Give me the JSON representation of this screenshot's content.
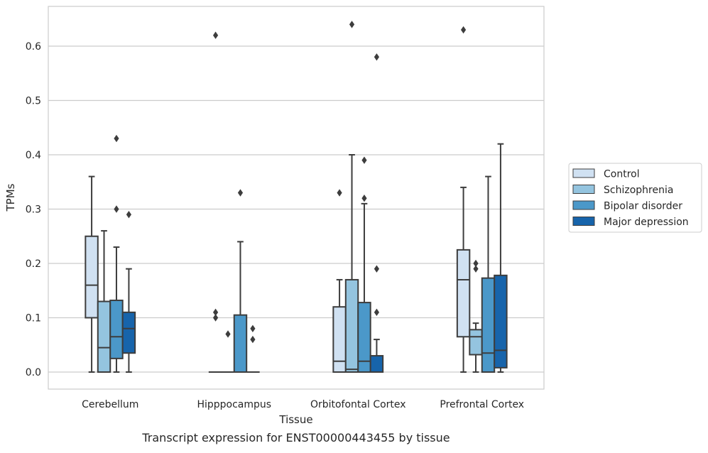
{
  "chart_data": {
    "type": "box",
    "title": "",
    "caption": "Transcript expression for ENST00000443455 by tissue",
    "xlabel": "Tissue",
    "ylabel": "TPMs",
    "ylim": [
      -0.03,
      0.675
    ],
    "yticks": [
      0.0,
      0.1,
      0.2,
      0.3,
      0.4,
      0.5,
      0.6
    ],
    "ytick_labels": [
      "0.0",
      "0.1",
      "0.2",
      "0.3",
      "0.4",
      "0.5",
      "0.6"
    ],
    "grid": "horizontal",
    "legend_position": "right",
    "categories": [
      "Cerebellum",
      "Hipppocampus",
      "Orbitofontal Cortex",
      "Prefrontal Cortex"
    ],
    "series": [
      {
        "name": "Control",
        "color": "#d0e1f2",
        "boxes": [
          {
            "whislo": 0.0,
            "q1": 0.1,
            "med": 0.16,
            "q3": 0.25,
            "whishi": 0.36,
            "fliers": []
          },
          {
            "whislo": 0.0,
            "q1": 0.0,
            "med": 0.0,
            "q3": 0.0,
            "whishi": 0.0,
            "fliers": [
              0.62,
              0.11,
              0.1
            ]
          },
          {
            "whislo": 0.0,
            "q1": 0.0,
            "med": 0.02,
            "q3": 0.12,
            "whishi": 0.17,
            "fliers": [
              0.33
            ]
          },
          {
            "whislo": 0.0,
            "q1": 0.065,
            "med": 0.17,
            "q3": 0.225,
            "whishi": 0.34,
            "fliers": [
              0.63
            ]
          }
        ]
      },
      {
        "name": "Schizophrenia",
        "color": "#94c4df",
        "boxes": [
          {
            "whislo": 0.0,
            "q1": 0.0,
            "med": 0.045,
            "q3": 0.13,
            "whishi": 0.26,
            "fliers": []
          },
          {
            "whislo": 0.0,
            "q1": 0.0,
            "med": 0.0,
            "q3": 0.0,
            "whishi": 0.0,
            "fliers": [
              0.07
            ]
          },
          {
            "whislo": 0.0,
            "q1": 0.0,
            "med": 0.005,
            "q3": 0.17,
            "whishi": 0.4,
            "fliers": [
              0.64
            ]
          },
          {
            "whislo": 0.0,
            "q1": 0.032,
            "med": 0.065,
            "q3": 0.078,
            "whishi": 0.09,
            "fliers": [
              0.2,
              0.19
            ]
          }
        ]
      },
      {
        "name": "Bipolar disorder",
        "color": "#4b98c9",
        "boxes": [
          {
            "whislo": 0.0,
            "q1": 0.025,
            "med": 0.065,
            "q3": 0.132,
            "whishi": 0.23,
            "fliers": [
              0.43,
              0.3
            ]
          },
          {
            "whislo": 0.0,
            "q1": 0.0,
            "med": 0.0,
            "q3": 0.105,
            "whishi": 0.24,
            "fliers": [
              0.33
            ]
          },
          {
            "whislo": 0.0,
            "q1": 0.0,
            "med": 0.02,
            "q3": 0.128,
            "whishi": 0.31,
            "fliers": [
              0.39,
              0.32
            ]
          },
          {
            "whislo": 0.0,
            "q1": 0.0,
            "med": 0.035,
            "q3": 0.173,
            "whishi": 0.36,
            "fliers": []
          }
        ]
      },
      {
        "name": "Major depression",
        "color": "#1764ab",
        "boxes": [
          {
            "whislo": 0.0,
            "q1": 0.035,
            "med": 0.08,
            "q3": 0.11,
            "whishi": 0.19,
            "fliers": [
              0.29
            ]
          },
          {
            "whislo": 0.0,
            "q1": 0.0,
            "med": 0.0,
            "q3": 0.0,
            "whishi": 0.0,
            "fliers": [
              0.08,
              0.06
            ]
          },
          {
            "whislo": 0.0,
            "q1": 0.0,
            "med": 0.0,
            "q3": 0.03,
            "whishi": 0.06,
            "fliers": [
              0.58,
              0.19,
              0.11
            ]
          },
          {
            "whislo": 0.0,
            "q1": 0.008,
            "med": 0.04,
            "q3": 0.178,
            "whishi": 0.42,
            "fliers": []
          }
        ]
      }
    ]
  }
}
